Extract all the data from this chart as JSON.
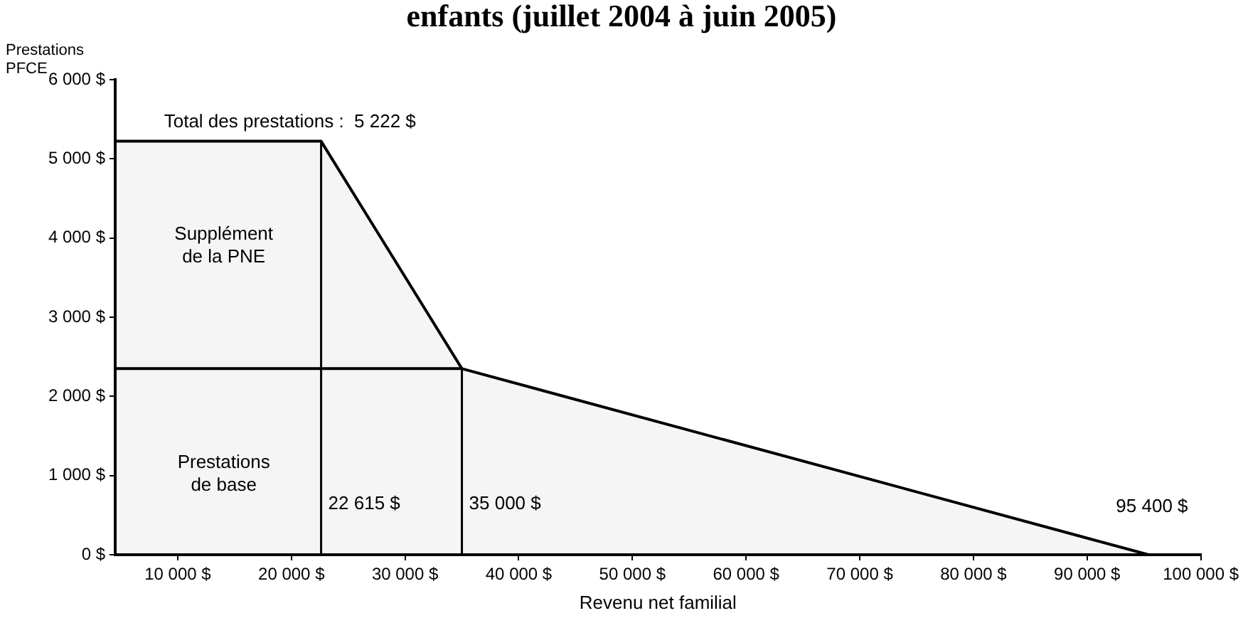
{
  "chart_data": {
    "type": "area",
    "title": "enfants (juillet 2004 à juin 2005)",
    "ylabel": "Prestations\nPFCE",
    "xlabel": "Revenu net familial",
    "series": [
      {
        "color": "#000000",
        "x": [
          4500,
          22615,
          35000,
          95400
        ],
        "values": [
          5222,
          5222,
          2350,
          0
        ]
      },
      {
        "type": "line",
        "color": "#000000",
        "x": [
          4500,
          35000
        ],
        "values": [
          2350,
          2350
        ]
      }
    ],
    "xlim": [
      4500,
      100000
    ],
    "xticks": [
      {
        "value": 10000,
        "label": "10 000 $"
      },
      {
        "value": 20000,
        "label": "20 000 $"
      },
      {
        "value": 30000,
        "label": "30 000 $"
      },
      {
        "value": 40000,
        "label": "40 000 $"
      },
      {
        "value": 50000,
        "label": "50 000 $"
      },
      {
        "value": 60000,
        "label": "60 000 $"
      },
      {
        "value": 70000,
        "label": "70 000 $"
      },
      {
        "value": 80000,
        "label": "80 000 $"
      },
      {
        "value": 90000,
        "label": "90 000 $"
      },
      {
        "value": 100000,
        "label": "100 000 $"
      }
    ],
    "ylim": [
      0,
      6000
    ],
    "yticks": [
      {
        "value": 0,
        "label": "0 $"
      },
      {
        "value": 1000,
        "label": "1 000 $"
      },
      {
        "value": 2000,
        "label": "2 000 $"
      },
      {
        "value": 3000,
        "label": "3 000 $"
      },
      {
        "value": 4000,
        "label": "4 000 $"
      },
      {
        "value": 5000,
        "label": "5 000 $"
      },
      {
        "value": 6000,
        "label": "6 000 $"
      }
    ],
    "ref_lines": [
      {
        "axis": "x",
        "value": 22615,
        "label": "22 615 $"
      },
      {
        "axis": "x",
        "value": 35000,
        "label": "35 000 $"
      }
    ],
    "annotations": [
      "Total des prestations :  5 222 $",
      "Supplément\nde la PNE",
      "Prestations\nde base",
      "95 400 $"
    ],
    "grid": false,
    "legend": false,
    "marker": "none"
  }
}
